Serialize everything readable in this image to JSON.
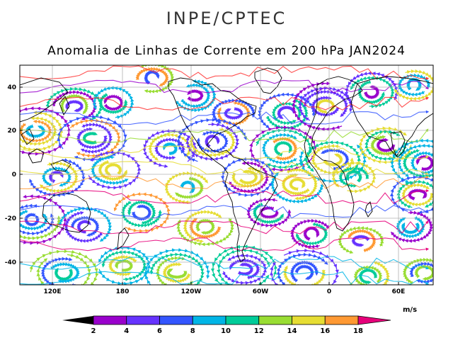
{
  "header": {
    "organization": "INPE/CPTEC",
    "title": "Anomalia de Linhas de Corrente em 200 hPa JAN2024"
  },
  "map": {
    "lon_range": [
      88,
      90
    ],
    "lat_range": [
      -50,
      50
    ],
    "y_ticks": [
      "40",
      "20",
      "0",
      "-20",
      "-40"
    ],
    "x_ticks": [
      "120E",
      "180",
      "120W",
      "60W",
      "0",
      "60E"
    ],
    "grid": true
  },
  "colorbar": {
    "unit": "m/s",
    "labels": [
      "2",
      "4",
      "6",
      "8",
      "10",
      "12",
      "14",
      "16",
      "18"
    ],
    "colors": [
      "#000000",
      "#9900cc",
      "#6633ff",
      "#3355ff",
      "#00b5e6",
      "#00cc99",
      "#99dd33",
      "#e6dd33",
      "#ff9933",
      "#ff3333",
      "#e6007a"
    ]
  }
}
